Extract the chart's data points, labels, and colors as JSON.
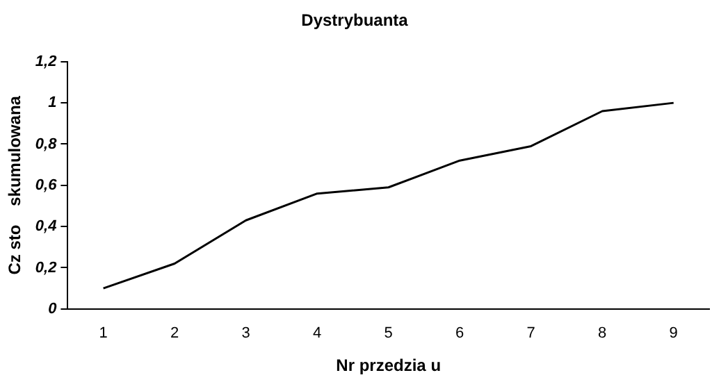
{
  "chart_data": {
    "type": "line",
    "title": "Dystrybuanta",
    "xlabel": "Nr przedzia u",
    "ylabel": "Cz sto    skumulowana",
    "categories": [
      "1",
      "2",
      "3",
      "4",
      "5",
      "6",
      "7",
      "8",
      "9"
    ],
    "series": [
      {
        "color": "#000000",
        "values": [
          0.1,
          0.22,
          0.43,
          0.56,
          0.59,
          0.72,
          0.79,
          0.96,
          1.0
        ]
      }
    ],
    "ylim": [
      0,
      1.2
    ],
    "yticks": [
      {
        "value": 0,
        "label": "0"
      },
      {
        "value": 0.2,
        "label": "0,2"
      },
      {
        "value": 0.4,
        "label": "0,4"
      },
      {
        "value": 0.6,
        "label": "0,6"
      },
      {
        "value": 0.8,
        "label": "0,8"
      },
      {
        "value": 1,
        "label": "1"
      },
      {
        "value": 1.2,
        "label": "1,2"
      }
    ],
    "grid": false,
    "legend": false,
    "marker": "none",
    "line_style": "solid"
  }
}
